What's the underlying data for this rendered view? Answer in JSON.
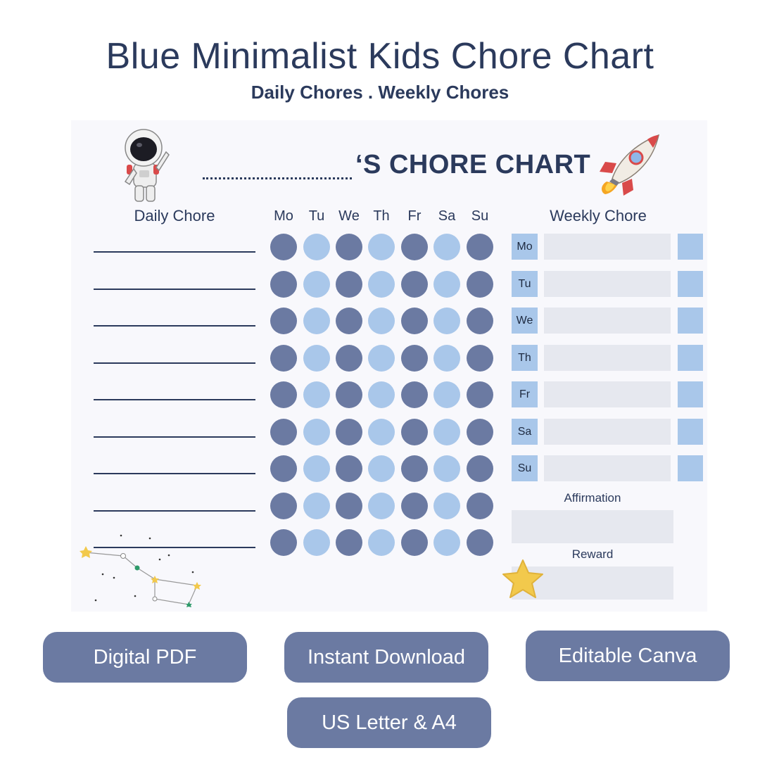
{
  "header": {
    "title": "Blue Minimalist Kids Chore Chart",
    "subtitle": "Daily Chores . Weekly Chores"
  },
  "chart": {
    "heading": "‘S CHORE CHART",
    "daily_heading": "Daily Chore",
    "weekly_heading": "Weekly Chore",
    "days": [
      "Mo",
      "Tu",
      "We",
      "Th",
      "Fr",
      "Sa",
      "Su"
    ],
    "weekly_days": [
      "Mo",
      "Tu",
      "We",
      "Th",
      "Fr",
      "Sa",
      "Su"
    ],
    "affirmation_label": "Affirmation",
    "reward_label": "Reward",
    "daily_rows": 9,
    "colors": {
      "dark_dot": "#6b7aa2",
      "light_dot": "#a9c7ea",
      "text": "#2b3a5c",
      "box": "#e6e8ef"
    }
  },
  "icons": {
    "astronaut": "astronaut-icon",
    "rocket": "rocket-icon",
    "constellation": "constellation-icon",
    "star": "star-icon"
  },
  "badges": [
    "Digital PDF",
    "Instant Download",
    "Editable Canva",
    "US Letter & A4"
  ]
}
